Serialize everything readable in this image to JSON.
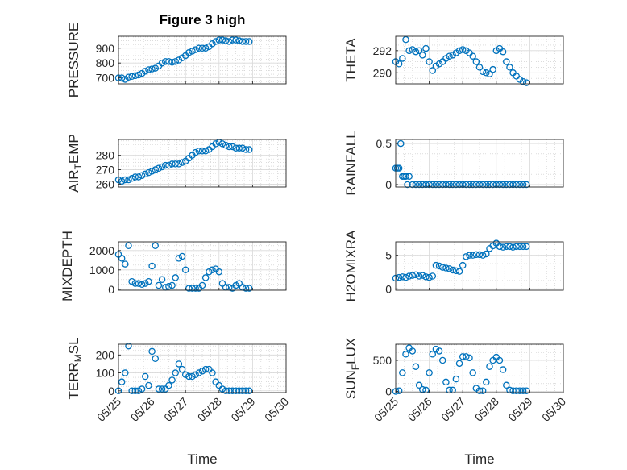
{
  "title": "Figure 3 high",
  "colors": {
    "marker": "#0072BD",
    "axis": "#262626",
    "grid": "#d9d9d9",
    "minor_grid": "#c8c8c8"
  },
  "x_axis": {
    "label": "Time",
    "ticks": [
      "05/25",
      "05/26",
      "05/27",
      "05/28",
      "05/29",
      "05/30"
    ]
  },
  "chart_data": [
    {
      "type": "scatter",
      "ylabel_parts": [
        "PRESSURE"
      ],
      "yticks": [
        700,
        800,
        900
      ],
      "ylim": [
        660,
        980
      ],
      "x": [
        25.0,
        25.1,
        25.2,
        25.3,
        25.4,
        25.5,
        25.6,
        25.7,
        25.8,
        25.9,
        26.0,
        26.1,
        26.2,
        26.3,
        26.4,
        26.5,
        26.6,
        26.7,
        26.8,
        26.9,
        27.0,
        27.1,
        27.2,
        27.3,
        27.4,
        27.5,
        27.6,
        27.7,
        27.8,
        27.9,
        28.0,
        28.1,
        28.2,
        28.3,
        28.4,
        28.5,
        28.6,
        28.7,
        28.8,
        28.9
      ],
      "values": [
        700,
        700,
        690,
        705,
        710,
        715,
        720,
        730,
        745,
        755,
        760,
        765,
        780,
        800,
        810,
        810,
        805,
        810,
        820,
        835,
        850,
        870,
        880,
        890,
        900,
        900,
        900,
        910,
        930,
        945,
        955,
        955,
        950,
        945,
        955,
        955,
        950,
        945,
        945,
        945
      ]
    },
    {
      "type": "scatter",
      "ylabel_parts": [
        "THETA"
      ],
      "yticks": [
        290,
        292
      ],
      "ylim": [
        289.0,
        293.3
      ],
      "x": [
        25.0,
        25.1,
        25.2,
        25.3,
        25.4,
        25.5,
        25.6,
        25.7,
        25.8,
        25.9,
        26.0,
        26.1,
        26.2,
        26.3,
        26.4,
        26.5,
        26.6,
        26.7,
        26.8,
        26.9,
        27.0,
        27.1,
        27.2,
        27.3,
        27.4,
        27.5,
        27.6,
        27.7,
        27.8,
        27.9,
        28.0,
        28.1,
        28.2,
        28.3,
        28.4,
        28.5,
        28.6,
        28.7,
        28.8,
        28.9
      ],
      "values": [
        291.0,
        290.8,
        291.3,
        293.0,
        292.0,
        292.1,
        291.9,
        292.0,
        291.6,
        292.2,
        291.0,
        290.2,
        290.6,
        290.8,
        291.0,
        291.3,
        291.5,
        291.6,
        291.8,
        292.0,
        292.1,
        292.0,
        291.8,
        291.5,
        291.0,
        290.5,
        290.1,
        290.0,
        289.9,
        290.3,
        292.0,
        292.2,
        291.9,
        291.0,
        290.5,
        290.0,
        289.7,
        289.4,
        289.2,
        289.1
      ]
    },
    {
      "type": "scatter",
      "ylabel_parts": [
        "AIR",
        "T",
        "EMP"
      ],
      "yticks": [
        260,
        270,
        280
      ],
      "ylim": [
        258,
        291
      ],
      "x": [
        25.0,
        25.1,
        25.2,
        25.3,
        25.4,
        25.5,
        25.6,
        25.7,
        25.8,
        25.9,
        26.0,
        26.1,
        26.2,
        26.3,
        26.4,
        26.5,
        26.6,
        26.7,
        26.8,
        26.9,
        27.0,
        27.1,
        27.2,
        27.3,
        27.4,
        27.5,
        27.6,
        27.7,
        27.8,
        27.9,
        28.0,
        28.1,
        28.2,
        28.3,
        28.4,
        28.5,
        28.6,
        28.7,
        28.8,
        28.9
      ],
      "values": [
        263,
        262,
        263,
        263,
        264,
        265,
        265,
        266,
        267,
        268,
        269,
        270,
        271,
        272,
        273,
        273,
        274,
        274,
        274,
        275,
        276,
        278,
        280,
        282,
        283,
        283,
        283,
        284,
        286,
        288,
        289,
        288,
        287,
        286,
        286,
        285,
        285,
        285,
        284,
        284
      ]
    },
    {
      "type": "scatter",
      "ylabel_parts": [
        "RAINFALL"
      ],
      "yticks": [
        0,
        0.5
      ],
      "ylim": [
        -0.03,
        0.55
      ],
      "x": [
        25.0,
        25.05,
        25.1,
        25.15,
        25.2,
        25.25,
        25.3,
        25.35,
        25.4,
        25.5,
        25.6,
        25.7,
        25.8,
        25.9,
        26.0,
        26.1,
        26.2,
        26.3,
        26.4,
        26.5,
        26.6,
        26.7,
        26.8,
        26.9,
        27.0,
        27.1,
        27.2,
        27.3,
        27.4,
        27.5,
        27.6,
        27.7,
        27.8,
        27.9,
        28.0,
        28.1,
        28.2,
        28.3,
        28.4,
        28.5,
        28.6,
        28.7,
        28.8,
        28.9
      ],
      "values": [
        0.2,
        0.2,
        0.2,
        0.5,
        0.1,
        0.1,
        0.1,
        0.0,
        0.1,
        0,
        0,
        0,
        0,
        0,
        0,
        0,
        0,
        0,
        0,
        0,
        0,
        0,
        0,
        0,
        0,
        0,
        0,
        0,
        0,
        0,
        0,
        0,
        0,
        0,
        0,
        0,
        0,
        0,
        0,
        0,
        0,
        0,
        0,
        0
      ]
    },
    {
      "type": "scatter",
      "ylabel_parts": [
        "MIXDEPTH"
      ],
      "yticks": [
        0,
        1000,
        2000
      ],
      "ylim": [
        -50,
        2450
      ],
      "x": [
        25.0,
        25.1,
        25.2,
        25.3,
        25.4,
        25.5,
        25.6,
        25.7,
        25.8,
        25.9,
        26.0,
        26.1,
        26.2,
        26.3,
        26.4,
        26.5,
        26.6,
        26.7,
        26.8,
        26.9,
        27.0,
        27.1,
        27.2,
        27.3,
        27.4,
        27.5,
        27.6,
        27.7,
        27.8,
        27.9,
        28.0,
        28.1,
        28.2,
        28.3,
        28.4,
        28.5,
        28.6,
        28.7,
        28.8,
        28.9
      ],
      "values": [
        1800,
        1600,
        1300,
        2250,
        400,
        300,
        300,
        250,
        300,
        400,
        1200,
        2250,
        200,
        500,
        100,
        150,
        200,
        600,
        1600,
        1700,
        1000,
        50,
        50,
        50,
        50,
        200,
        600,
        900,
        1000,
        1050,
        900,
        300,
        100,
        100,
        50,
        200,
        300,
        100,
        50,
        50
      ]
    },
    {
      "type": "scatter",
      "ylabel_parts": [
        "H2OMIXRA"
      ],
      "yticks": [
        0,
        5
      ],
      "ylim": [
        -0.2,
        7.0
      ],
      "x": [
        25.0,
        25.1,
        25.2,
        25.3,
        25.4,
        25.5,
        25.6,
        25.7,
        25.8,
        25.9,
        26.0,
        26.1,
        26.2,
        26.3,
        26.4,
        26.5,
        26.6,
        26.7,
        26.8,
        26.9,
        27.0,
        27.1,
        27.2,
        27.3,
        27.4,
        27.5,
        27.6,
        27.7,
        27.8,
        27.9,
        28.0,
        28.1,
        28.2,
        28.3,
        28.4,
        28.5,
        28.6,
        28.7,
        28.8,
        28.9
      ],
      "values": [
        1.6,
        1.7,
        1.8,
        1.7,
        1.9,
        2.0,
        2.1,
        1.9,
        2.0,
        1.8,
        1.7,
        1.9,
        3.5,
        3.4,
        3.2,
        3.1,
        3.0,
        2.8,
        2.7,
        2.6,
        3.5,
        4.8,
        5.0,
        5.0,
        5.1,
        5.1,
        5.0,
        5.2,
        6.0,
        6.4,
        6.8,
        6.3,
        6.2,
        6.3,
        6.3,
        6.2,
        6.3,
        6.3,
        6.3,
        6.3
      ]
    },
    {
      "type": "scatter",
      "ylabel_parts": [
        "TERR",
        "M",
        "SL"
      ],
      "yticks": [
        0,
        100,
        200
      ],
      "ylim": [
        -10,
        260
      ],
      "x": [
        25.0,
        25.1,
        25.2,
        25.3,
        25.4,
        25.5,
        25.6,
        25.7,
        25.8,
        25.9,
        26.0,
        26.1,
        26.2,
        26.3,
        26.4,
        26.5,
        26.6,
        26.7,
        26.8,
        26.9,
        27.0,
        27.1,
        27.2,
        27.3,
        27.4,
        27.5,
        27.6,
        27.7,
        27.8,
        27.9,
        28.0,
        28.1,
        28.2,
        28.3,
        28.4,
        28.5,
        28.6,
        28.7,
        28.8,
        28.9
      ],
      "values": [
        0,
        50,
        100,
        250,
        0,
        0,
        0,
        10,
        80,
        30,
        220,
        180,
        10,
        10,
        10,
        30,
        60,
        100,
        150,
        120,
        90,
        80,
        80,
        90,
        100,
        110,
        120,
        120,
        100,
        50,
        30,
        10,
        0,
        0,
        0,
        0,
        0,
        0,
        0,
        0
      ]
    },
    {
      "type": "scatter",
      "ylabel_parts": [
        "SUN",
        "F",
        "LUX"
      ],
      "yticks": [
        0,
        500
      ],
      "ylim": [
        -20,
        760
      ],
      "x": [
        25.0,
        25.1,
        25.2,
        25.3,
        25.4,
        25.5,
        25.6,
        25.7,
        25.8,
        25.9,
        26.0,
        26.1,
        26.2,
        26.3,
        26.4,
        26.5,
        26.6,
        26.7,
        26.8,
        26.9,
        27.0,
        27.1,
        27.2,
        27.3,
        27.4,
        27.5,
        27.6,
        27.7,
        27.8,
        27.9,
        28.0,
        28.1,
        28.2,
        28.3,
        28.4,
        28.5,
        28.6,
        28.7,
        28.8,
        28.9
      ],
      "values": [
        0,
        10,
        300,
        600,
        700,
        650,
        400,
        100,
        30,
        20,
        300,
        600,
        680,
        650,
        500,
        150,
        20,
        20,
        200,
        450,
        560,
        560,
        540,
        300,
        50,
        10,
        10,
        150,
        400,
        500,
        550,
        500,
        350,
        100,
        20,
        10,
        10,
        10,
        10,
        10
      ]
    }
  ]
}
